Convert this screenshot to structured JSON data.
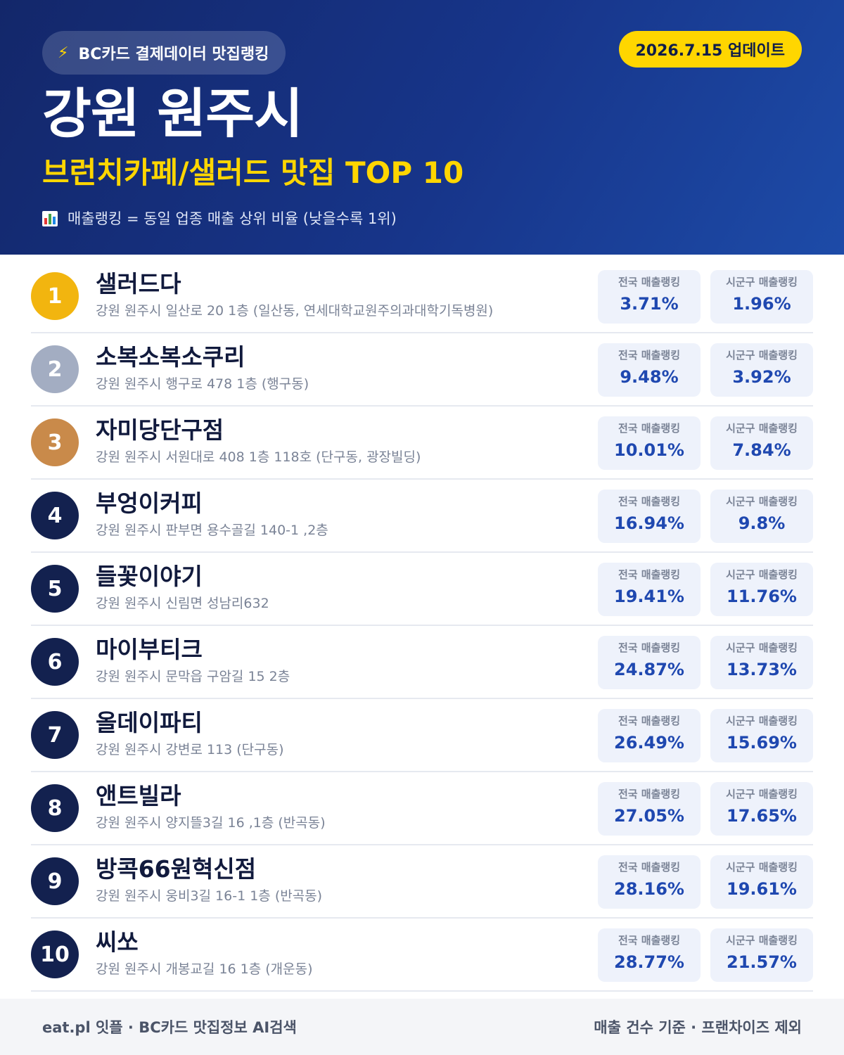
{
  "header": {
    "source_badge": "BC카드 결제데이터 맛집랭킹",
    "update_badge": "2026.7.15 업데이트",
    "title": "강원 원주시",
    "subtitle": "브런치카페/샐러드 맛집 TOP 10",
    "note": "매출랭킹 = 동일 업종 매출 상위 비율 (낮을수록 1위)",
    "icons": [
      "lightning-icon",
      "bar-chart-icon"
    ],
    "colors": {
      "background": "#17358a",
      "accent": "#ffd600"
    }
  },
  "stat_labels": {
    "national": "전국 매출랭킹",
    "local": "시군구 매출랭킹"
  },
  "restaurants": [
    {
      "rank": "1",
      "name": "샐러드다",
      "address": "강원 원주시 일산로 20 1층 (일산동, 연세대학교원주의과대학기독병원)",
      "national": "3.71%",
      "local": "1.96%"
    },
    {
      "rank": "2",
      "name": "소복소복소쿠리",
      "address": "강원 원주시 행구로 478 1층 (행구동)",
      "national": "9.48%",
      "local": "3.92%"
    },
    {
      "rank": "3",
      "name": "자미당단구점",
      "address": "강원 원주시 서원대로 408 1층 118호 (단구동, 광장빌딩)",
      "national": "10.01%",
      "local": "7.84%"
    },
    {
      "rank": "4",
      "name": "부엉이커피",
      "address": "강원 원주시 판부면 용수골길 140-1 ,2층",
      "national": "16.94%",
      "local": "9.8%"
    },
    {
      "rank": "5",
      "name": "들꽃이야기",
      "address": "강원 원주시 신림면 성남리632",
      "national": "19.41%",
      "local": "11.76%"
    },
    {
      "rank": "6",
      "name": "마이부티크",
      "address": "강원 원주시 문막읍 구암길 15 2층",
      "national": "24.87%",
      "local": "13.73%"
    },
    {
      "rank": "7",
      "name": "올데이파티",
      "address": "강원 원주시 강변로 113 (단구동)",
      "national": "26.49%",
      "local": "15.69%"
    },
    {
      "rank": "8",
      "name": "앤트빌라",
      "address": "강원 원주시 양지뜰3길 16 ,1층 (반곡동)",
      "national": "27.05%",
      "local": "17.65%"
    },
    {
      "rank": "9",
      "name": "방콕66원혁신점",
      "address": "강원 원주시 웅비3길 16-1 1층 (반곡동)",
      "national": "28.16%",
      "local": "19.61%"
    },
    {
      "rank": "10",
      "name": "씨쏘",
      "address": "강원 원주시 개봉교길 16 1층 (개운동)",
      "national": "28.77%",
      "local": "21.57%"
    }
  ],
  "footer": {
    "left": "eat.pl 잇플 · BC카드 맛집정보 AI검색",
    "right": "매출 건수 기준 · 프랜차이즈 제외"
  }
}
